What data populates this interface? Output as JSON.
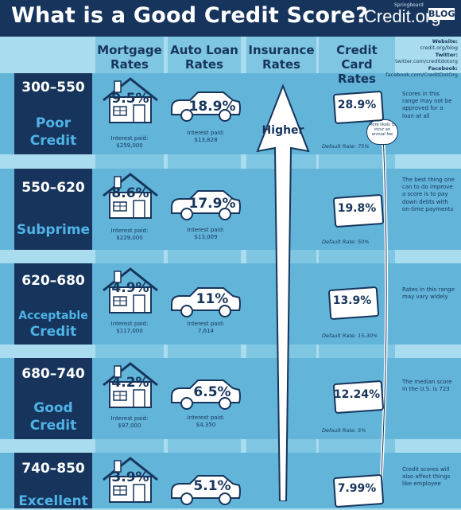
{
  "header": {
    "title": "What is a Good Credit Score?",
    "brand": "Credit.org",
    "brand_small": "Springboard",
    "blog": "BLOG"
  },
  "columns": {
    "mortgage": [
      "Mortgage",
      "Rates"
    ],
    "auto": [
      "Auto Loan",
      "Rates"
    ],
    "insurance": [
      "Insurance",
      "Rates"
    ],
    "credit_card": [
      "Credit Card",
      "Rates"
    ]
  },
  "social": {
    "website_label": "Website:",
    "website": "credit.org/blog",
    "twitter_label": "Twitter:",
    "twitter": "twitter.com/creditdotorg",
    "facebook_label": "Facebook:",
    "facebook": "facebook.com/CreditDotOrg"
  },
  "insurance": {
    "label": "Higher",
    "bubble": "More likely to incur an annual fee"
  },
  "rows": [
    {
      "range": "300–550",
      "grade": [
        "Poor",
        "Credit"
      ],
      "mortgage": "9.5%",
      "mortgage_paid": [
        "Interest paid:",
        "$259,000"
      ],
      "auto": "18.9%",
      "auto_paid": [
        "Interest paid:",
        "$13,828"
      ],
      "card": "28.9%",
      "default": "Default Rate: 75%",
      "note": "Scores in this range may not be approved for a loan at all"
    },
    {
      "range": "550–620",
      "grade": [
        "Subprime"
      ],
      "mortgage": "8.6%",
      "mortgage_paid": [
        "Interest paid:",
        "$229,000"
      ],
      "auto": "17.9%",
      "auto_paid": [
        "Interest paid:",
        "$13,009"
      ],
      "card": "19.8%",
      "default": "Default Rate: 50%",
      "note": "The best thing one can to do improve a score is to pay down debts with on-time payments"
    },
    {
      "range": "620–680",
      "grade": [
        "Acceptable",
        "Credit"
      ],
      "mortgage": "4.9%",
      "mortgage_paid": [
        "Interest paid:",
        "$117,000"
      ],
      "auto": "11%",
      "auto_paid": [
        "Interest paid:",
        "7,614"
      ],
      "card": "13.9%",
      "default": "Default Rate: 15-30%",
      "note": "Rates in this range may vary widely"
    },
    {
      "range": "680–740",
      "grade": [
        "Good",
        "Credit"
      ],
      "mortgage": "4.2%",
      "mortgage_paid": [
        "Interest paid:",
        "$97,000"
      ],
      "auto": "6.5%",
      "auto_paid": [
        "Interest paid:",
        "$4,350"
      ],
      "card": "12.24%",
      "default": "Default Rate: 5%",
      "note": "The median score in the U.S. is 723"
    },
    {
      "range": "740–850",
      "grade": [
        "Excellent"
      ],
      "mortgage": "3.9%",
      "mortgage_paid": [
        "",
        ""
      ],
      "auto": "5.1%",
      "auto_paid": [
        "",
        ""
      ],
      "card": "7.99%",
      "default": "",
      "note": "Credit scores will also affect things like employee"
    }
  ]
}
